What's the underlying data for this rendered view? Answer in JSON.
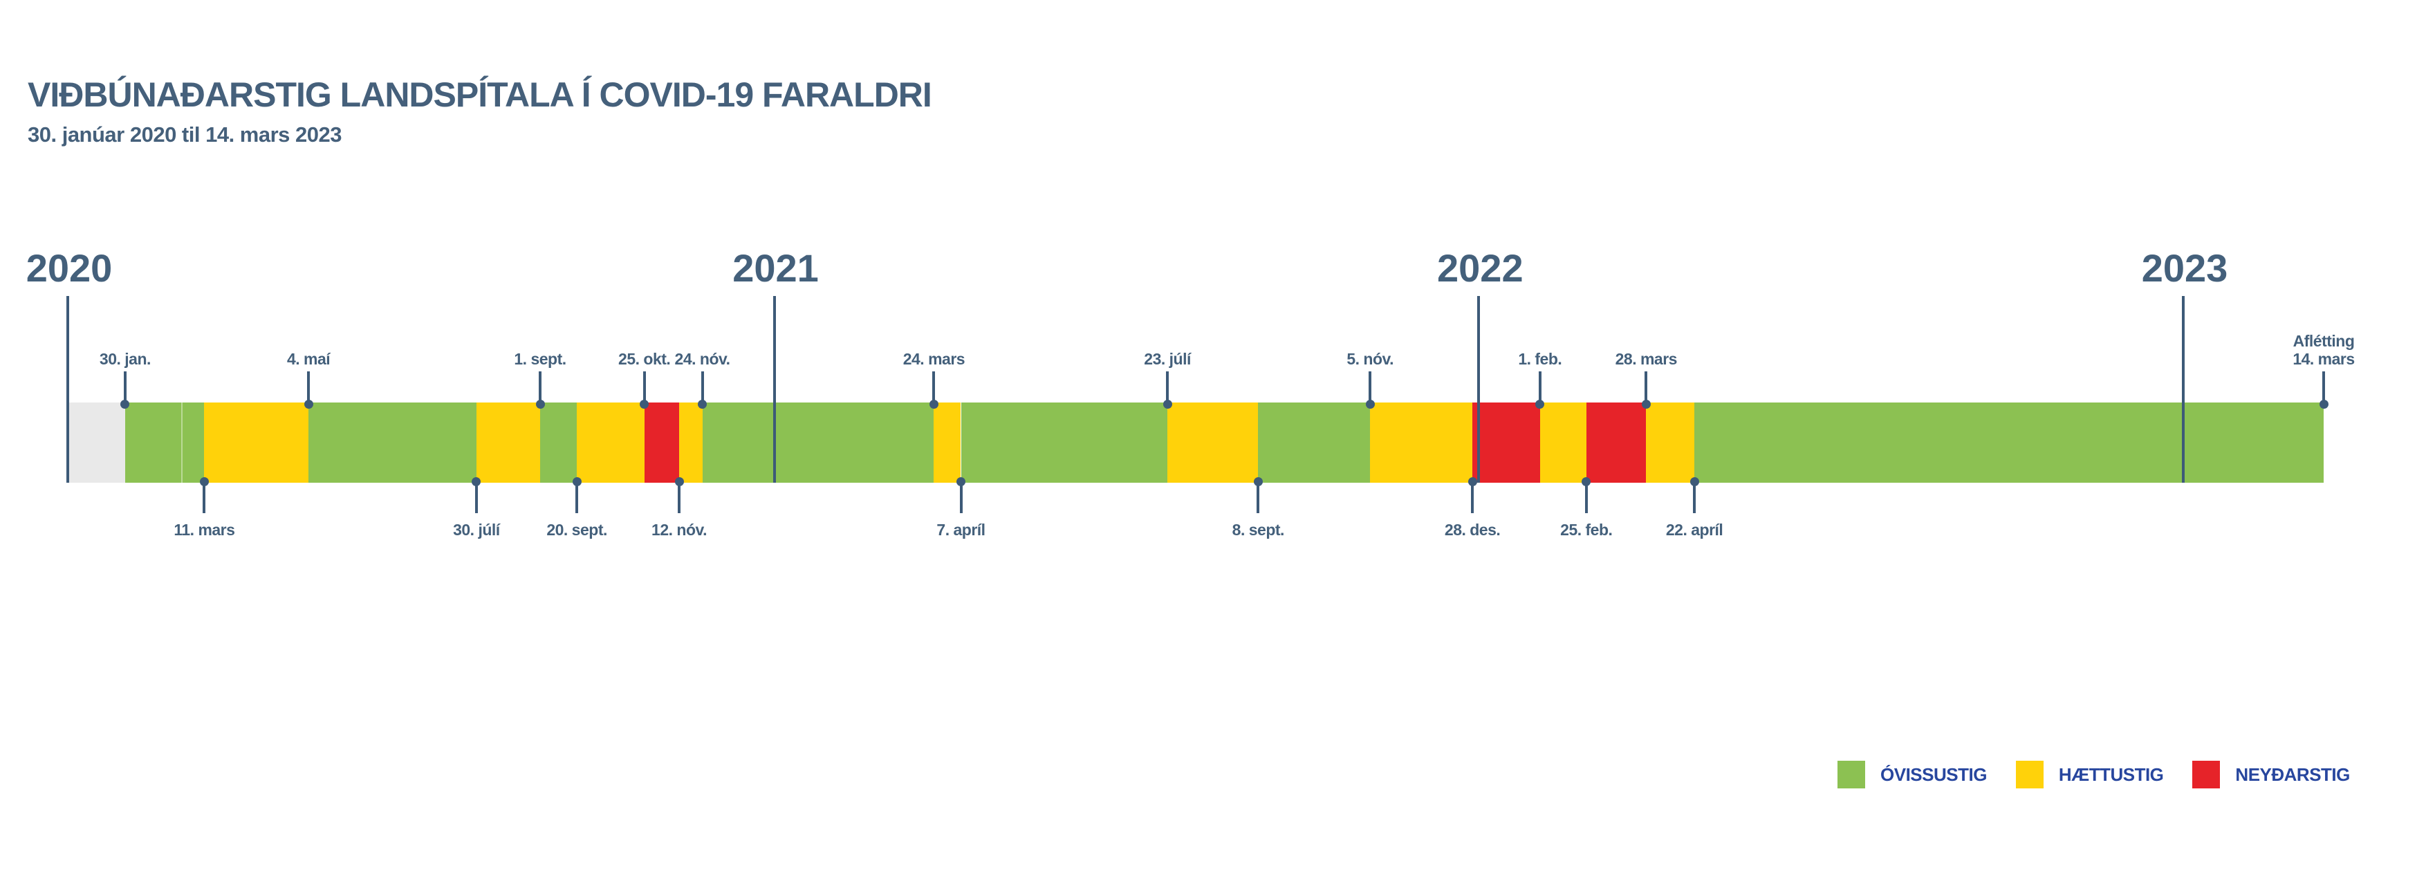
{
  "header": {
    "title": "VIÐBÚNAÐARSTIG LANDSPÍTALA Í COVID-19 FARALDRI",
    "subtitle": "30. janúar 2020 til 14. mars 2023"
  },
  "colors": {
    "ovissustig": "#8cc152",
    "haettustig": "#ffd20a",
    "neydarstig": "#e62329",
    "undeclared": "#e9e9e9",
    "text_slate": "#44607b",
    "line_slate": "#3d5a78",
    "legend_text": "#27469e",
    "background": "#ffffff"
  },
  "legend": {
    "items": [
      {
        "label": "ÓVISSUSTIG",
        "level": "ovissustig"
      },
      {
        "label": "HÆTTUSTIG",
        "level": "haettustig"
      },
      {
        "label": "NEYÐARSTIG",
        "level": "neydarstig"
      }
    ]
  },
  "chart_data": {
    "type": "bar",
    "variant": "horizontal-timeline",
    "title": "VIÐBÚNAÐARSTIG LANDSPÍTALA Í COVID-19 FARALDRI",
    "subtitle": "30. janúar 2020 til 14. mars 2023",
    "timeline_start": "2020-01-01",
    "timeline_end": "2023-03-14",
    "legend_position": "bottom-right",
    "levels": {
      "ovissustig": "ÓVISSUSTIG",
      "haettustig": "HÆTTUSTIG",
      "neydarstig": "NEYÐARSTIG"
    },
    "years": [
      {
        "label": "2020",
        "date": "2020-01-01"
      },
      {
        "label": "2021",
        "date": "2021-01-01"
      },
      {
        "label": "2022",
        "date": "2022-01-01"
      },
      {
        "label": "2023",
        "date": "2023-01-01"
      }
    ],
    "segments": [
      {
        "start": "2020-01-01",
        "end": "2020-01-30",
        "level": "undeclared"
      },
      {
        "start": "2020-01-30",
        "end": "2020-02-28",
        "level": "ovissustig"
      },
      {
        "start": "2020-02-28",
        "end": "2020-03-11",
        "level": "ovissustig"
      },
      {
        "start": "2020-03-11",
        "end": "2020-05-04",
        "level": "haettustig"
      },
      {
        "start": "2020-05-04",
        "end": "2020-07-30",
        "level": "ovissustig"
      },
      {
        "start": "2020-07-30",
        "end": "2020-09-01",
        "level": "haettustig"
      },
      {
        "start": "2020-09-01",
        "end": "2020-09-20",
        "level": "ovissustig"
      },
      {
        "start": "2020-09-20",
        "end": "2020-10-25",
        "level": "haettustig"
      },
      {
        "start": "2020-10-25",
        "end": "2020-11-12",
        "level": "neydarstig"
      },
      {
        "start": "2020-11-12",
        "end": "2020-11-24",
        "level": "haettustig"
      },
      {
        "start": "2020-11-24",
        "end": "2021-03-24",
        "level": "ovissustig"
      },
      {
        "start": "2021-03-24",
        "end": "2021-04-07",
        "level": "haettustig"
      },
      {
        "start": "2021-04-07",
        "end": "2021-07-23",
        "level": "ovissustig"
      },
      {
        "start": "2021-07-23",
        "end": "2021-09-08",
        "level": "haettustig"
      },
      {
        "start": "2021-09-08",
        "end": "2021-11-05",
        "level": "ovissustig"
      },
      {
        "start": "2021-11-05",
        "end": "2021-12-28",
        "level": "haettustig"
      },
      {
        "start": "2021-12-28",
        "end": "2022-02-01",
        "level": "neydarstig"
      },
      {
        "start": "2022-02-01",
        "end": "2022-02-25",
        "level": "haettustig"
      },
      {
        "start": "2022-02-25",
        "end": "2022-03-28",
        "level": "neydarstig"
      },
      {
        "start": "2022-03-28",
        "end": "2022-04-22",
        "level": "haettustig"
      },
      {
        "start": "2022-04-22",
        "end": "2023-03-14",
        "level": "ovissustig"
      }
    ],
    "markers": [
      {
        "date": "2020-01-30",
        "label": "30. jan.",
        "side": "top"
      },
      {
        "date": "2020-03-11",
        "label": "11. mars",
        "side": "bottom"
      },
      {
        "date": "2020-05-04",
        "label": "4. maí",
        "side": "top"
      },
      {
        "date": "2020-07-30",
        "label": "30. júlí",
        "side": "bottom"
      },
      {
        "date": "2020-09-01",
        "label": "1. sept.",
        "side": "top"
      },
      {
        "date": "2020-09-20",
        "label": "20. sept.",
        "side": "bottom"
      },
      {
        "date": "2020-10-25",
        "label": "25. okt.",
        "side": "top"
      },
      {
        "date": "2020-11-12",
        "label": "12. nóv.",
        "side": "bottom"
      },
      {
        "date": "2020-11-24",
        "label": "24. nóv.",
        "side": "top"
      },
      {
        "date": "2021-03-24",
        "label": "24. mars",
        "side": "top"
      },
      {
        "date": "2021-04-07",
        "label": "7. apríl",
        "side": "bottom"
      },
      {
        "date": "2021-07-23",
        "label": "23. júlí",
        "side": "top"
      },
      {
        "date": "2021-09-08",
        "label": "8. sept.",
        "side": "bottom"
      },
      {
        "date": "2021-11-05",
        "label": "5. nóv.",
        "side": "top"
      },
      {
        "date": "2021-12-28",
        "label": "28. des.",
        "side": "bottom"
      },
      {
        "date": "2022-02-01",
        "label": "1. feb.",
        "side": "top"
      },
      {
        "date": "2022-02-25",
        "label": "25. feb.",
        "side": "bottom"
      },
      {
        "date": "2022-03-28",
        "label": "28. mars",
        "side": "top"
      },
      {
        "date": "2022-04-22",
        "label": "22. apríl",
        "side": "bottom"
      },
      {
        "date": "2023-03-14",
        "label": "Aflétting",
        "label2": "14. mars",
        "side": "top"
      }
    ]
  }
}
